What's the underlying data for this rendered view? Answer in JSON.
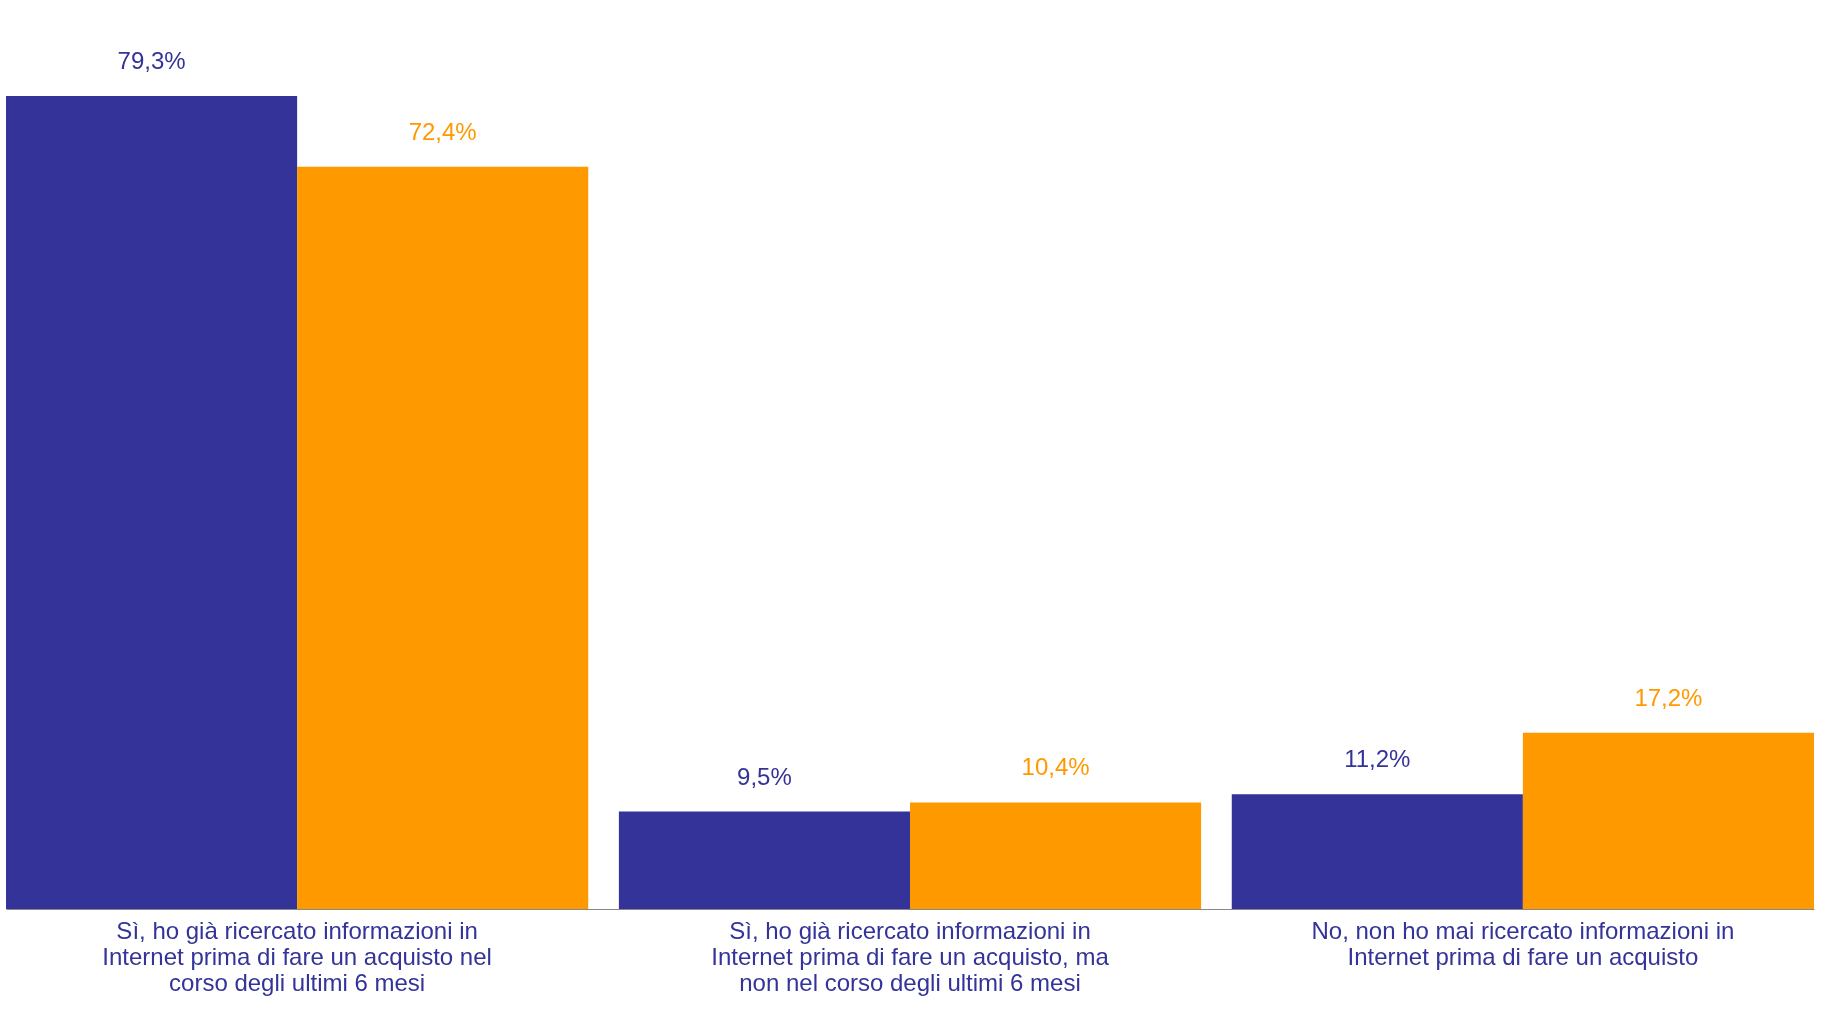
{
  "chart_data": {
    "type": "bar",
    "categories": [
      "Sì, ho già ricercato informazioni in Internet prima di fare un acquisto nel corso degli ultimi 6 mesi",
      "Sì, ho già ricercato informazioni in Internet prima di fare un acquisto, ma non nel corso degli ultimi 6 mesi",
      "No, non ho mai ricercato informazioni in Internet prima di fare un acquisto"
    ],
    "series": [
      {
        "color": "#333399",
        "values": [
          79.3,
          9.5,
          11.2
        ],
        "value_labels": [
          "79,3%",
          "9,5%",
          "11,2%"
        ]
      },
      {
        "color": "#ff9900",
        "values": [
          72.4,
          10.4,
          17.2
        ],
        "value_labels": [
          "72,4%",
          "10,4%",
          "17,2%"
        ]
      }
    ],
    "grid": false
  }
}
